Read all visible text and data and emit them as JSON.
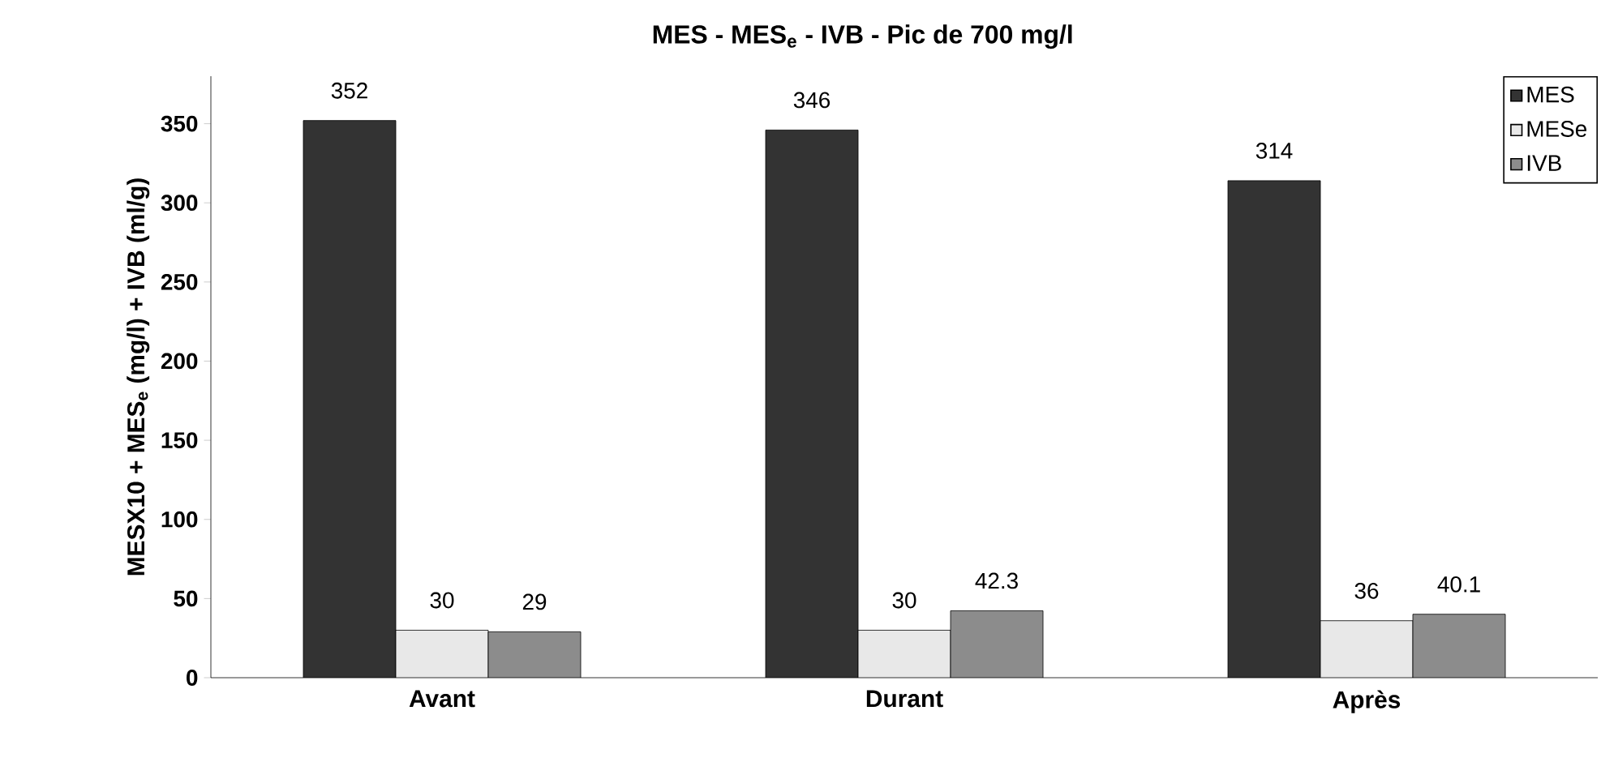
{
  "chart_data": {
    "type": "bar",
    "title": "MES - MES$_{e}$ - IVB - Pic de 700 mg/l",
    "ylabel": "MESX10 + MES$_{e}$ (mg/l) + IVB (ml/g)",
    "categories": [
      "Avant",
      "Durant",
      "Après"
    ],
    "series": [
      {
        "name": "MES",
        "color": "#333333",
        "values": [
          352,
          346,
          314
        ]
      },
      {
        "name": "MESe",
        "color": "#e8e8e8",
        "values": [
          30,
          30,
          36
        ]
      },
      {
        "name": "IVB",
        "color": "#8c8c8c",
        "values": [
          29,
          42.3,
          40.1
        ]
      }
    ],
    "ylim": [
      0,
      380
    ],
    "yticks": [
      0,
      50,
      100,
      150,
      200,
      250,
      300,
      350
    ],
    "data_labels": true,
    "legend": "top right",
    "grid": false
  }
}
